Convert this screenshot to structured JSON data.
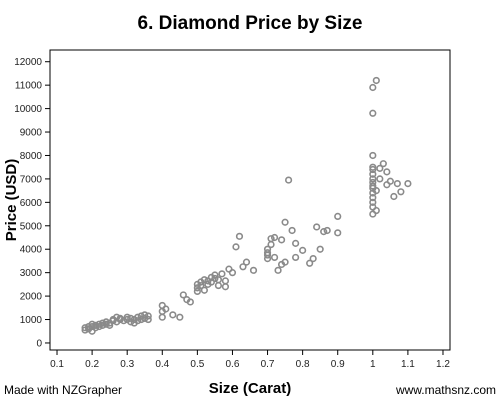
{
  "chart_data": {
    "type": "scatter",
    "title": "6. Diamond Price by Size",
    "xlabel": "Size (Carat)",
    "ylabel": "Price (USD)",
    "xlim": [
      0.08,
      1.22
    ],
    "ylim": [
      -300,
      12500
    ],
    "xticks": [
      "0.1",
      "0.2",
      "0.3",
      "0.4",
      "0.5",
      "0.6",
      "0.7",
      "0.8",
      "0.9",
      "1",
      "1.1",
      "1.2"
    ],
    "yticks": [
      "0",
      "1000",
      "2000",
      "3000",
      "4000",
      "5000",
      "6000",
      "7000",
      "8000",
      "9000",
      "10000",
      "11000",
      "12000"
    ],
    "grid": false,
    "legend": "none",
    "marker_color": "#8a8a8a",
    "points": [
      [
        0.18,
        550
      ],
      [
        0.18,
        650
      ],
      [
        0.19,
        600
      ],
      [
        0.19,
        700
      ],
      [
        0.2,
        500
      ],
      [
        0.2,
        700
      ],
      [
        0.2,
        800
      ],
      [
        0.21,
        650
      ],
      [
        0.21,
        750
      ],
      [
        0.22,
        700
      ],
      [
        0.22,
        800
      ],
      [
        0.23,
        750
      ],
      [
        0.23,
        850
      ],
      [
        0.24,
        800
      ],
      [
        0.24,
        900
      ],
      [
        0.25,
        850
      ],
      [
        0.25,
        750
      ],
      [
        0.26,
        950
      ],
      [
        0.26,
        1000
      ],
      [
        0.27,
        900
      ],
      [
        0.27,
        1100
      ],
      [
        0.28,
        1000
      ],
      [
        0.28,
        1050
      ],
      [
        0.29,
        950
      ],
      [
        0.3,
        1000
      ],
      [
        0.3,
        1100
      ],
      [
        0.31,
        1050
      ],
      [
        0.31,
        900
      ],
      [
        0.32,
        850
      ],
      [
        0.32,
        1000
      ],
      [
        0.33,
        950
      ],
      [
        0.33,
        1100
      ],
      [
        0.34,
        1000
      ],
      [
        0.34,
        1150
      ],
      [
        0.35,
        1050
      ],
      [
        0.35,
        1200
      ],
      [
        0.36,
        1000
      ],
      [
        0.36,
        1150
      ],
      [
        0.4,
        1600
      ],
      [
        0.4,
        1350
      ],
      [
        0.4,
        1100
      ],
      [
        0.41,
        1450
      ],
      [
        0.43,
        1200
      ],
      [
        0.45,
        1100
      ],
      [
        0.46,
        2050
      ],
      [
        0.47,
        1850
      ],
      [
        0.48,
        1750
      ],
      [
        0.5,
        2200
      ],
      [
        0.5,
        2350
      ],
      [
        0.5,
        2500
      ],
      [
        0.51,
        2450
      ],
      [
        0.51,
        2600
      ],
      [
        0.52,
        2250
      ],
      [
        0.52,
        2700
      ],
      [
        0.53,
        2500
      ],
      [
        0.53,
        2650
      ],
      [
        0.54,
        2600
      ],
      [
        0.54,
        2800
      ],
      [
        0.55,
        2750
      ],
      [
        0.55,
        2900
      ],
      [
        0.56,
        2700
      ],
      [
        0.56,
        2450
      ],
      [
        0.57,
        2950
      ],
      [
        0.58,
        2650
      ],
      [
        0.58,
        2400
      ],
      [
        0.59,
        3150
      ],
      [
        0.6,
        3000
      ],
      [
        0.61,
        4100
      ],
      [
        0.62,
        4550
      ],
      [
        0.63,
        3250
      ],
      [
        0.64,
        3450
      ],
      [
        0.66,
        3100
      ],
      [
        0.7,
        3600
      ],
      [
        0.7,
        3750
      ],
      [
        0.7,
        3850
      ],
      [
        0.7,
        4000
      ],
      [
        0.71,
        4200
      ],
      [
        0.71,
        4450
      ],
      [
        0.72,
        3650
      ],
      [
        0.72,
        4500
      ],
      [
        0.73,
        3100
      ],
      [
        0.74,
        4400
      ],
      [
        0.74,
        3350
      ],
      [
        0.75,
        3450
      ],
      [
        0.75,
        5150
      ],
      [
        0.76,
        6950
      ],
      [
        0.77,
        4800
      ],
      [
        0.78,
        3650
      ],
      [
        0.78,
        4250
      ],
      [
        0.8,
        3950
      ],
      [
        0.82,
        3400
      ],
      [
        0.83,
        3600
      ],
      [
        0.84,
        4950
      ],
      [
        0.85,
        4000
      ],
      [
        0.86,
        4750
      ],
      [
        0.87,
        4800
      ],
      [
        0.9,
        4700
      ],
      [
        0.9,
        5400
      ],
      [
        1.0,
        5500
      ],
      [
        1.0,
        5800
      ],
      [
        1.0,
        6000
      ],
      [
        1.0,
        6200
      ],
      [
        1.0,
        6400
      ],
      [
        1.0,
        6600
      ],
      [
        1.0,
        6700
      ],
      [
        1.0,
        6850
      ],
      [
        1.0,
        7000
      ],
      [
        1.0,
        7200
      ],
      [
        1.0,
        7400
      ],
      [
        1.0,
        7500
      ],
      [
        1.0,
        8000
      ],
      [
        1.0,
        9800
      ],
      [
        1.0,
        10900
      ],
      [
        1.01,
        11200
      ],
      [
        1.01,
        5650
      ],
      [
        1.01,
        6500
      ],
      [
        1.02,
        7000
      ],
      [
        1.02,
        7450
      ],
      [
        1.03,
        7650
      ],
      [
        1.04,
        6750
      ],
      [
        1.04,
        7300
      ],
      [
        1.05,
        6900
      ],
      [
        1.06,
        6250
      ],
      [
        1.07,
        6800
      ],
      [
        1.08,
        6450
      ],
      [
        1.1,
        6800
      ]
    ]
  },
  "footer": {
    "left": "Made with NZGrapher",
    "right": "www.mathsnz.com"
  }
}
